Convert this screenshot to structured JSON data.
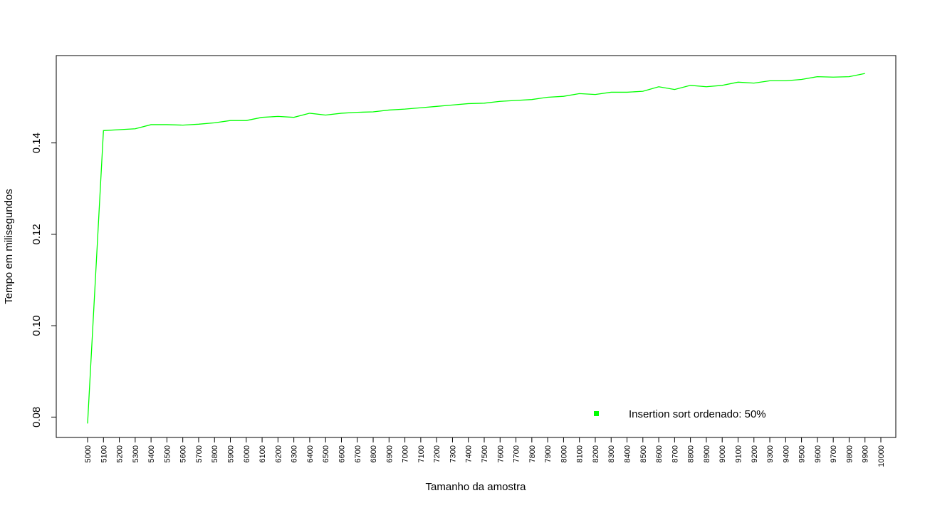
{
  "chart_data": {
    "type": "line",
    "title": "",
    "xlabel": "Tamanho da amostra",
    "ylabel": "Tempo em milisegundos",
    "x": [
      5000,
      5100,
      5200,
      5300,
      5400,
      5500,
      5600,
      5700,
      5800,
      5900,
      6000,
      6100,
      6200,
      6300,
      6400,
      6500,
      6600,
      6700,
      6800,
      6900,
      7000,
      7100,
      7200,
      7300,
      7400,
      7500,
      7600,
      7700,
      7800,
      7900,
      8000,
      8100,
      8200,
      8300,
      8400,
      8500,
      8600,
      8700,
      8800,
      8900,
      9000,
      9100,
      9200,
      9300,
      9400,
      9500,
      9600,
      9700,
      9800,
      9900
    ],
    "x_tick_labels": [
      "5000",
      "5100",
      "5200",
      "5300",
      "5400",
      "5500",
      "5600",
      "5700",
      "5800",
      "5900",
      "6000",
      "6100",
      "6200",
      "6300",
      "6400",
      "6500",
      "6600",
      "6700",
      "6800",
      "6900",
      "7000",
      "7100",
      "7200",
      "7300",
      "7400",
      "7500",
      "7600",
      "7700",
      "7800",
      "7900",
      "8000",
      "8100",
      "8200",
      "8300",
      "8400",
      "8500",
      "8600",
      "8700",
      "8800",
      "8900",
      "9000",
      "9100",
      "9200",
      "9300",
      "9400",
      "9500",
      "9600",
      "9700",
      "9800",
      "9900",
      "10000"
    ],
    "y_ticks": [
      0.08,
      0.1,
      0.12,
      0.14
    ],
    "y_tick_labels": [
      "0.08",
      "0.10",
      "0.12",
      "0.14"
    ],
    "xlim": [
      5000,
      10000
    ],
    "ylim": [
      0.0785,
      0.156
    ],
    "grid": false,
    "legend_position": "bottom-right",
    "series": [
      {
        "name": "Insertion sort ordenado: 50%",
        "color": "#00ff00",
        "values": [
          0.0786,
          0.1427,
          0.1429,
          0.1431,
          0.144,
          0.144,
          0.1439,
          0.1441,
          0.1444,
          0.1449,
          0.1449,
          0.1456,
          0.1458,
          0.1456,
          0.1465,
          0.1461,
          0.1465,
          0.1467,
          0.1468,
          0.1472,
          0.1474,
          0.1477,
          0.148,
          0.1483,
          0.1486,
          0.1487,
          0.1491,
          0.1493,
          0.1495,
          0.15,
          0.1502,
          0.1508,
          0.1506,
          0.1511,
          0.1511,
          0.1513,
          0.1523,
          0.1517,
          0.1526,
          0.1523,
          0.1526,
          0.1533,
          0.1531,
          0.1536,
          0.1536,
          0.1539,
          0.1545,
          0.1544,
          0.1545,
          0.1552
        ]
      }
    ]
  }
}
